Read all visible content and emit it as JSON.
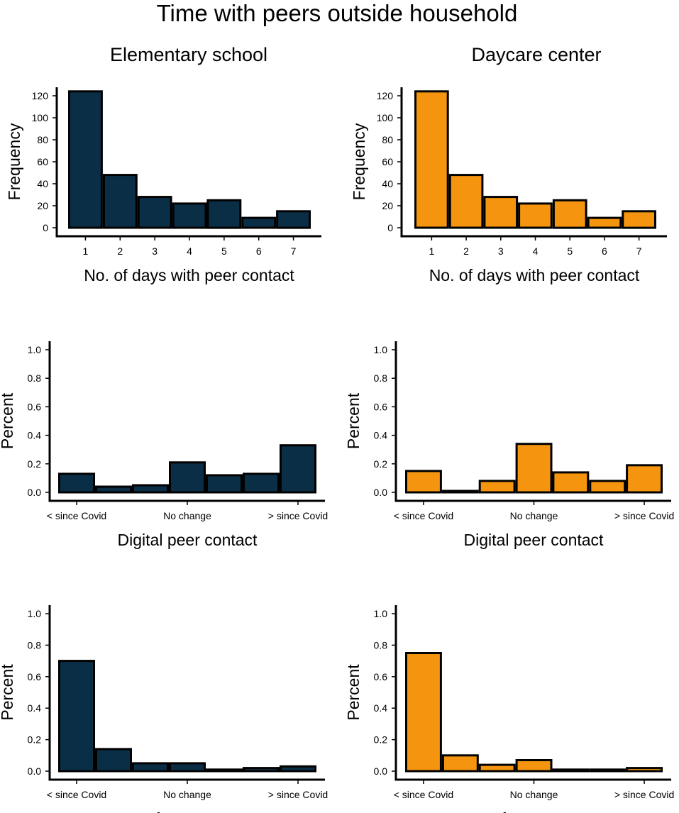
{
  "figure": {
    "title": "Time with peers outside household",
    "column_titles": [
      "Elementary school",
      "Daycare center"
    ]
  },
  "colors": {
    "elementary": "#0b2e47",
    "daycare": "#f5950f",
    "outline": "#000000"
  },
  "chart_data": [
    {
      "id": "elem-days",
      "type": "bar",
      "group": "Elementary school",
      "xlabel": "No. of days with peer contact",
      "ylabel": "Frequency",
      "ylim": [
        0,
        130
      ],
      "yticks": [
        "0",
        "20",
        "40",
        "60",
        "80",
        "100",
        "120"
      ],
      "categories": [
        "1",
        "2",
        "3",
        "4",
        "5",
        "6",
        "7"
      ],
      "xticklabels": [
        "1",
        "2",
        "3",
        "4",
        "5",
        "6",
        "7"
      ],
      "values": [
        124,
        48,
        28,
        22,
        25,
        9,
        15
      ]
    },
    {
      "id": "day-days",
      "type": "bar",
      "group": "Daycare center",
      "xlabel": "No. of days with peer contact",
      "ylabel": "Frequency",
      "ylim": [
        0,
        130
      ],
      "yticks": [
        "0",
        "20",
        "40",
        "60",
        "80",
        "100",
        "120"
      ],
      "categories": [
        "1",
        "2",
        "3",
        "4",
        "5",
        "6",
        "7"
      ],
      "xticklabels": [
        "1",
        "2",
        "3",
        "4",
        "5",
        "6",
        "7"
      ],
      "values": [
        124,
        48,
        28,
        22,
        25,
        9,
        15
      ]
    },
    {
      "id": "elem-digital",
      "type": "bar",
      "group": "Elementary school",
      "xlabel": "Digital peer contact",
      "ylabel": "Percent",
      "ylim": [
        0,
        1.0
      ],
      "yticks": [
        "0.0",
        "0.2",
        "0.4",
        "0.6",
        "0.8",
        "1.0"
      ],
      "categories": [
        "1",
        "2",
        "3",
        "4",
        "5",
        "6",
        "7"
      ],
      "xticklabels": [
        "< since Covid",
        "No change",
        "> since Covid"
      ],
      "values": [
        0.13,
        0.04,
        0.05,
        0.21,
        0.12,
        0.13,
        0.33
      ]
    },
    {
      "id": "day-digital",
      "type": "bar",
      "group": "Daycare center",
      "xlabel": "Digital peer contact",
      "ylabel": "Percent",
      "ylim": [
        0,
        1.0
      ],
      "yticks": [
        "0.0",
        "0.2",
        "0.4",
        "0.6",
        "0.8",
        "1.0"
      ],
      "categories": [
        "1",
        "2",
        "3",
        "4",
        "5",
        "6",
        "7"
      ],
      "xticklabels": [
        "< since Covid",
        "No change",
        "> since Covid"
      ],
      "values": [
        0.15,
        0.01,
        0.08,
        0.34,
        0.14,
        0.08,
        0.19
      ]
    },
    {
      "id": "elem-f2f",
      "type": "bar",
      "group": "Elementary school",
      "xlabel": "Face-to-face peer contact",
      "ylabel": "Percent",
      "ylim": [
        0,
        1.0
      ],
      "yticks": [
        "0.0",
        "0.2",
        "0.4",
        "0.6",
        "0.8",
        "1.0"
      ],
      "categories": [
        "1",
        "2",
        "3",
        "4",
        "5",
        "6",
        "7"
      ],
      "xticklabels": [
        "< since Covid",
        "No change",
        "> since Covid"
      ],
      "values": [
        0.7,
        0.14,
        0.05,
        0.05,
        0.01,
        0.02,
        0.03
      ]
    },
    {
      "id": "day-f2f",
      "type": "bar",
      "group": "Daycare center",
      "xlabel": "Face-to-face peer contact",
      "ylabel": "Percent",
      "ylim": [
        0,
        1.0
      ],
      "yticks": [
        "0.0",
        "0.2",
        "0.4",
        "0.6",
        "0.8",
        "1.0"
      ],
      "categories": [
        "1",
        "2",
        "3",
        "4",
        "5",
        "6",
        "7"
      ],
      "xticklabels": [
        "< since Covid",
        "No change",
        "> since Covid"
      ],
      "values": [
        0.75,
        0.1,
        0.04,
        0.07,
        0.01,
        0.01,
        0.02
      ]
    }
  ]
}
